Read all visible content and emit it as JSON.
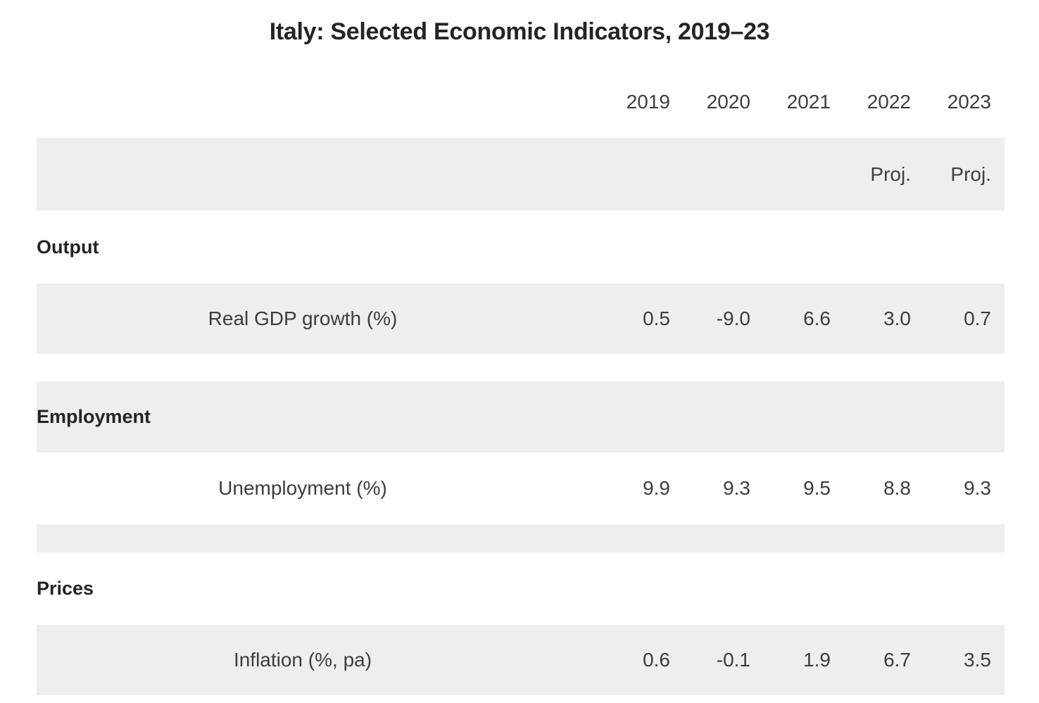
{
  "title": "Italy: Selected Economic Indicators, 2019–23",
  "colors": {
    "background": "#ffffff",
    "stripe_gray": "#eeeeee",
    "heading_text": "#272324",
    "body_text": "#3d3d3d"
  },
  "table": {
    "year_headers": [
      "2019",
      "2020",
      "2021",
      "2022",
      "2023"
    ],
    "proj_row": {
      "label_2022": "Proj.",
      "label_2023": "Proj."
    },
    "sections": [
      {
        "header": "Output",
        "rows": [
          {
            "label": "Real GDP growth (%)",
            "values": [
              "0.5",
              "-9.0",
              "6.6",
              "3.0",
              "0.7"
            ]
          }
        ]
      },
      {
        "header": "Employment",
        "rows": [
          {
            "label": "Unemployment (%)",
            "values": [
              "9.9",
              "9.3",
              "9.5",
              "8.8",
              "9.3"
            ]
          }
        ]
      },
      {
        "header": "Prices",
        "rows": [
          {
            "label": "Inflation (%, pa)",
            "values": [
              "0.6",
              "-0.1",
              "1.9",
              "6.7",
              "3.5"
            ]
          }
        ]
      }
    ]
  },
  "chart_data": {
    "type": "table",
    "title": "Italy: Selected Economic Indicators, 2019–23",
    "years": [
      "2019",
      "2020",
      "2021",
      "2022",
      "2023"
    ],
    "projection_years": [
      "2022",
      "2023"
    ],
    "rows": [
      {
        "section": "Output",
        "indicator": "Real GDP growth (%)",
        "values": [
          0.5,
          -9.0,
          6.6,
          3.0,
          0.7
        ]
      },
      {
        "section": "Employment",
        "indicator": "Unemployment (%)",
        "values": [
          9.9,
          9.3,
          9.5,
          8.8,
          9.3
        ]
      },
      {
        "section": "Prices",
        "indicator": "Inflation (%, pa)",
        "values": [
          0.6,
          -0.1,
          1.9,
          6.7,
          3.5
        ]
      }
    ],
    "layout": {
      "striped": true,
      "grid": false,
      "legend": "none"
    }
  }
}
